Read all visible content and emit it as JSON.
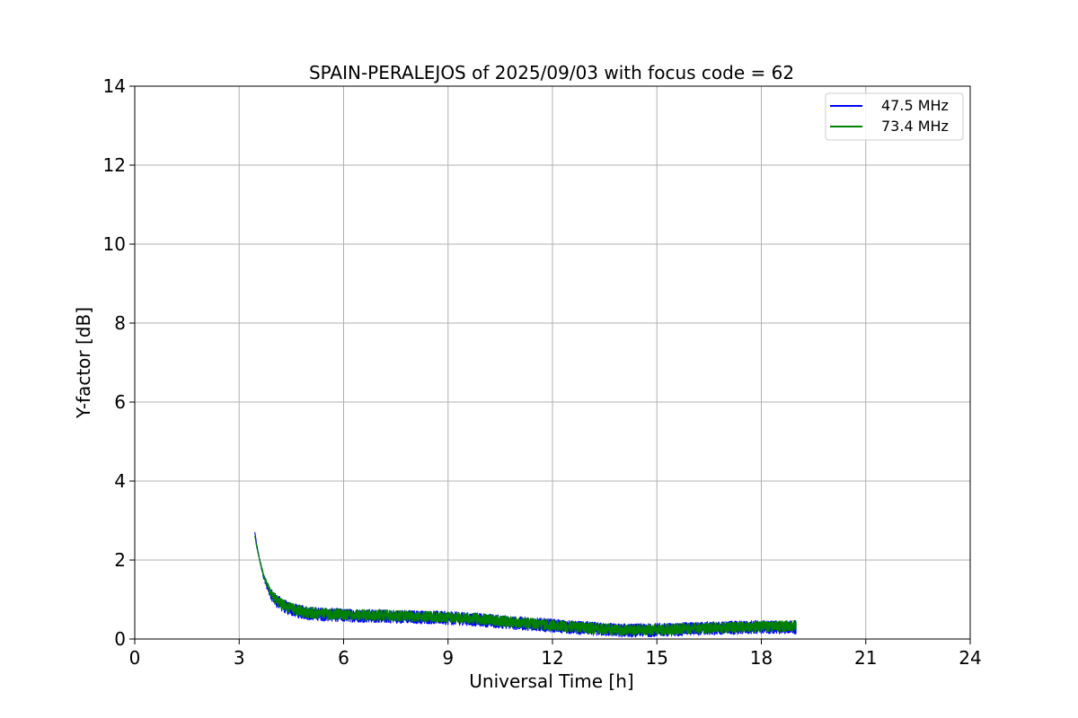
{
  "chart_data": {
    "type": "line",
    "title": "SPAIN-PERALEJOS of 2025/09/03 with focus code = 62",
    "xlabel": "Universal Time [h]",
    "ylabel": "Y-factor [dB]",
    "xlim": [
      0,
      24
    ],
    "ylim": [
      0,
      14
    ],
    "xticks": [
      0,
      3,
      6,
      9,
      12,
      15,
      18,
      21,
      24
    ],
    "yticks": [
      0,
      2,
      4,
      6,
      8,
      10,
      12,
      14
    ],
    "xtick_labels": [
      "0",
      "3",
      "6",
      "9",
      "12",
      "15",
      "18",
      "21",
      "24"
    ],
    "ytick_labels": [
      "0",
      "2",
      "4",
      "6",
      "8",
      "10",
      "12",
      "14"
    ],
    "grid": true,
    "legend_position": "top-right",
    "series": [
      {
        "name": "47.5 MHz",
        "color": "#0000ff",
        "band_halfwidth": 0.17,
        "x": [
          3.45,
          3.5,
          3.6,
          3.7,
          3.8,
          3.9,
          4.0,
          4.2,
          4.4,
          4.7,
          5.0,
          5.5,
          6.0,
          6.5,
          7.0,
          7.5,
          8.0,
          8.5,
          9.0,
          9.5,
          10.0,
          10.5,
          11.0,
          11.5,
          12.0,
          12.5,
          13.0,
          13.5,
          14.0,
          14.5,
          15.0,
          15.5,
          16.0,
          16.5,
          17.0,
          17.5,
          18.0,
          18.5,
          19.0
        ],
        "y": [
          2.7,
          2.4,
          1.95,
          1.6,
          1.35,
          1.15,
          1.02,
          0.88,
          0.78,
          0.7,
          0.65,
          0.62,
          0.6,
          0.59,
          0.58,
          0.57,
          0.56,
          0.55,
          0.53,
          0.51,
          0.48,
          0.44,
          0.4,
          0.37,
          0.34,
          0.3,
          0.27,
          0.24,
          0.22,
          0.22,
          0.23,
          0.24,
          0.26,
          0.27,
          0.28,
          0.29,
          0.3,
          0.3,
          0.3
        ]
      },
      {
        "name": "73.4 MHz",
        "color": "#008000",
        "band_halfwidth": 0.14,
        "x": [
          3.45,
          3.5,
          3.6,
          3.7,
          3.8,
          3.9,
          4.0,
          4.2,
          4.4,
          4.7,
          5.0,
          5.5,
          6.0,
          6.5,
          7.0,
          7.5,
          8.0,
          8.5,
          9.0,
          9.5,
          10.0,
          10.5,
          11.0,
          11.5,
          12.0,
          12.5,
          13.0,
          13.5,
          14.0,
          14.5,
          15.0,
          15.5,
          16.0,
          16.5,
          17.0,
          17.5,
          18.0,
          18.5,
          19.0
        ],
        "y": [
          2.6,
          2.35,
          1.95,
          1.62,
          1.38,
          1.18,
          1.05,
          0.9,
          0.8,
          0.72,
          0.67,
          0.64,
          0.62,
          0.61,
          0.6,
          0.59,
          0.58,
          0.57,
          0.55,
          0.53,
          0.5,
          0.46,
          0.42,
          0.38,
          0.35,
          0.31,
          0.28,
          0.25,
          0.23,
          0.23,
          0.24,
          0.25,
          0.27,
          0.28,
          0.29,
          0.3,
          0.31,
          0.32,
          0.33
        ]
      }
    ]
  }
}
